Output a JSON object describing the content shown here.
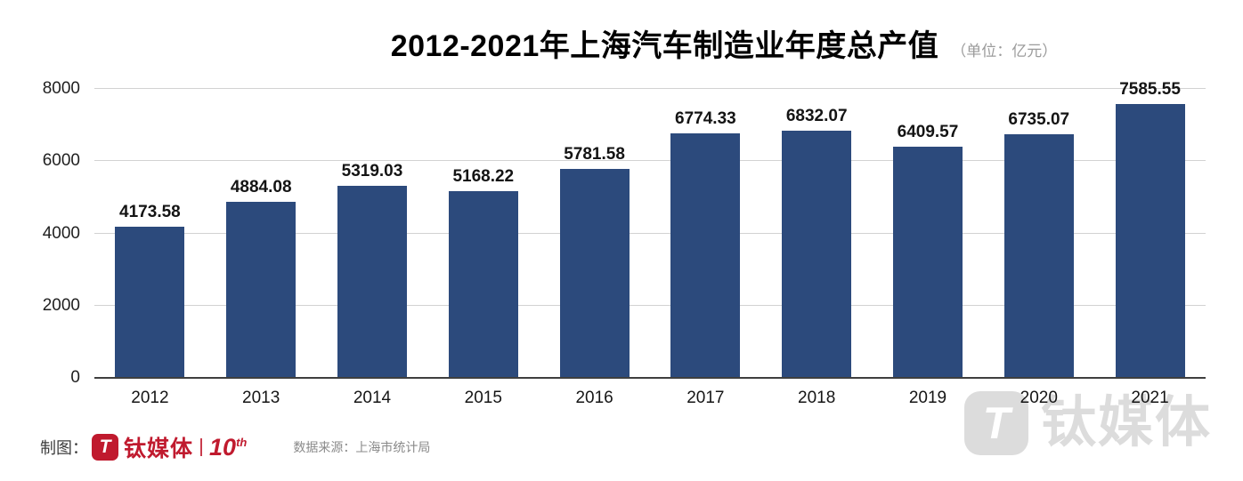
{
  "chart_data": {
    "type": "bar",
    "title": "2012-2021年上海汽车制造业年度总产值",
    "unit_label": "（单位：亿元）",
    "categories": [
      "2012",
      "2013",
      "2014",
      "2015",
      "2016",
      "2017",
      "2018",
      "2019",
      "2020",
      "2021"
    ],
    "values": [
      4173.58,
      4884.08,
      5319.03,
      5168.22,
      5781.58,
      6774.33,
      6832.07,
      6409.57,
      6735.07,
      7585.55
    ],
    "value_labels": [
      "4173.58",
      "4884.08",
      "5319.03",
      "5168.22",
      "5781.58",
      "6774.33",
      "6832.07",
      "6409.57",
      "6735.07",
      "7585.55"
    ],
    "xlabel": "",
    "ylabel": "",
    "ylim": [
      0,
      8000
    ],
    "yticks": [
      0,
      2000,
      4000,
      6000,
      8000
    ],
    "grid": "horizontal",
    "legend": "none",
    "bar_color": "#2c4a7c"
  },
  "footer": {
    "made_by_label": "制图：",
    "logo_glyph": "T",
    "brand_name": "钛媒体",
    "anniversary_number": "10",
    "anniversary_suffix": "th",
    "source_label": "数据来源：上海市统计局"
  },
  "watermark": {
    "logo_glyph": "T",
    "brand_text": "钛媒体"
  },
  "colors": {
    "bar": "#2c4a7c",
    "brand_red": "#c01a2e",
    "gridline": "#d2d2d2",
    "axis_line": "#3f3f3f",
    "unit_text": "#9b9b9b",
    "source_text": "#8a8a8a",
    "watermark_gray": "#dcdcdc",
    "label_text": "#141414"
  }
}
